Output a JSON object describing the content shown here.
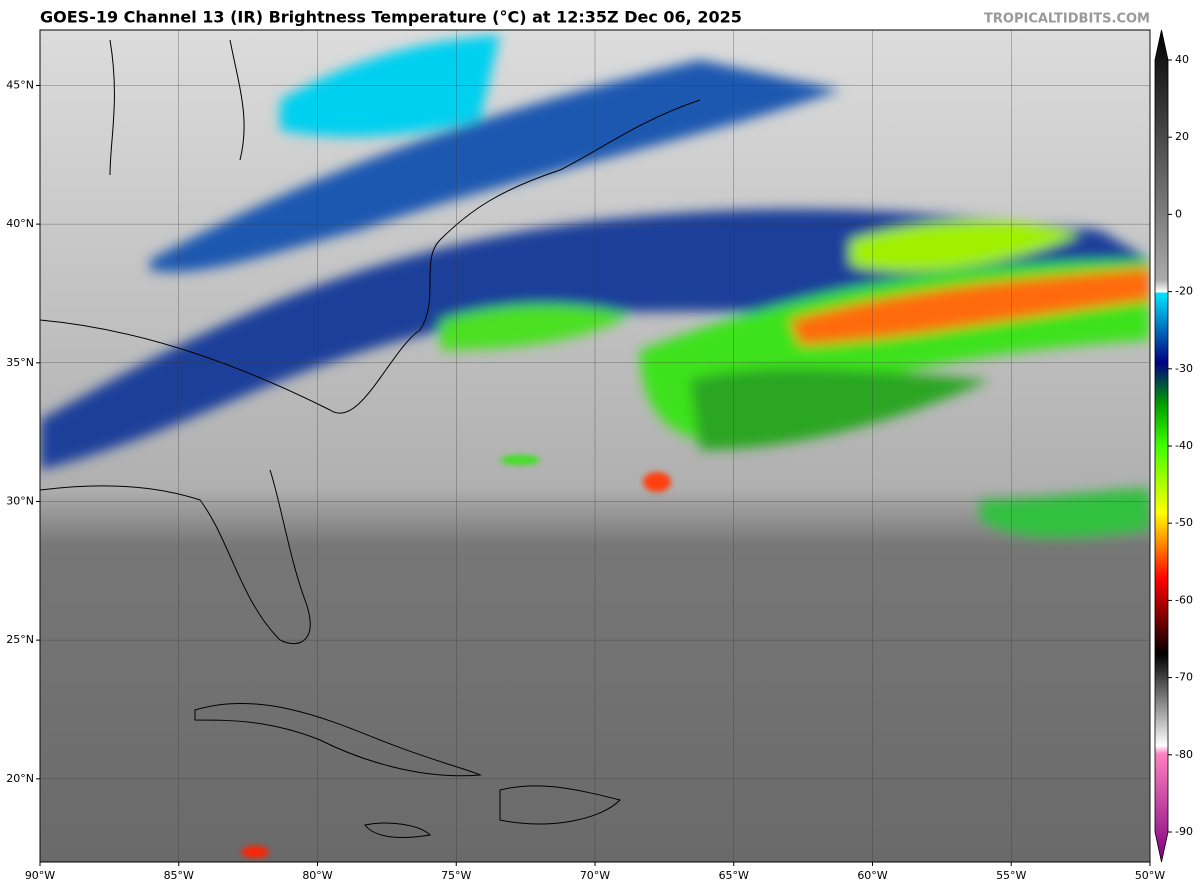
{
  "header": {
    "title": "GOES-19 Channel 13 (IR) Brightness Temperature (°C) at 12:35Z Dec 06, 2025",
    "watermark": "TROPICALTIDBITS.COM"
  },
  "map": {
    "lonlim": [
      -90,
      -50
    ],
    "latlim": [
      17,
      47
    ],
    "lon_ticks": [
      {
        "value": -90,
        "label": "90°W"
      },
      {
        "value": -85,
        "label": "85°W"
      },
      {
        "value": -80,
        "label": "80°W"
      },
      {
        "value": -75,
        "label": "75°W"
      },
      {
        "value": -70,
        "label": "70°W"
      },
      {
        "value": -65,
        "label": "65°W"
      },
      {
        "value": -60,
        "label": "60°W"
      },
      {
        "value": -55,
        "label": "55°W"
      },
      {
        "value": -50,
        "label": "50°W"
      }
    ],
    "lat_ticks": [
      {
        "value": 20,
        "label": "20°N"
      },
      {
        "value": 25,
        "label": "25°N"
      },
      {
        "value": 30,
        "label": "30°N"
      },
      {
        "value": 35,
        "label": "35°N"
      },
      {
        "value": 40,
        "label": "40°N"
      },
      {
        "value": 45,
        "label": "45°N"
      }
    ]
  },
  "colorbar": {
    "ticks": [
      40,
      20,
      0,
      -20,
      -30,
      -40,
      -50,
      -60,
      -70,
      -80,
      -90
    ]
  }
}
